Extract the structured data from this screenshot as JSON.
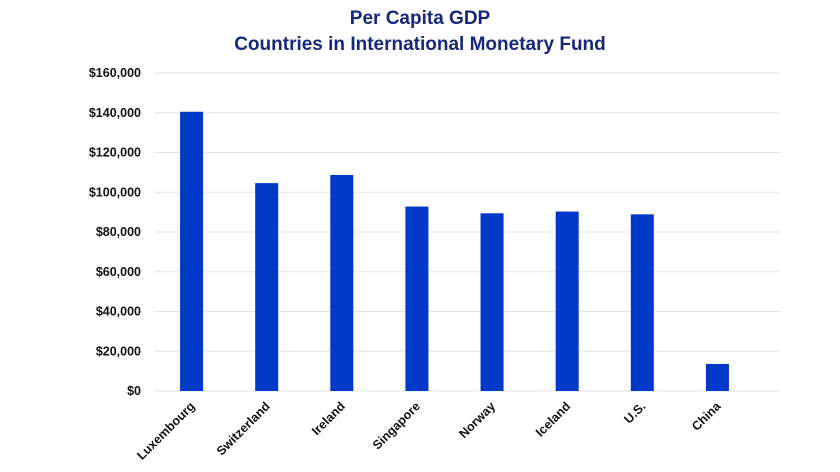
{
  "chart_data": {
    "type": "bar",
    "title": "Per Capita GDP",
    "subtitle": "Countries in International Monetary Fund",
    "xlabel": "",
    "ylabel": "",
    "categories": [
      "Luxembourg",
      "Switzerland",
      "Ireland",
      "Singapore",
      "Norway",
      "Iceland",
      "U.S.",
      "China"
    ],
    "values": [
      140500,
      104600,
      108700,
      92800,
      89400,
      90300,
      88900,
      13600
    ],
    "ylim": [
      0,
      160000
    ],
    "yticks": [
      0,
      20000,
      40000,
      60000,
      80000,
      100000,
      120000,
      140000,
      160000
    ],
    "ytick_labels": [
      "$0",
      "$20,000",
      "$40,000",
      "$60,000",
      "$80,000",
      "$100,000",
      "$120,000",
      "$140,000",
      "$160,000"
    ],
    "grid": true,
    "legend": "none",
    "colors": {
      "bar": "#0038c8",
      "title": "#17287a",
      "grid": "#e3e3e8"
    }
  }
}
